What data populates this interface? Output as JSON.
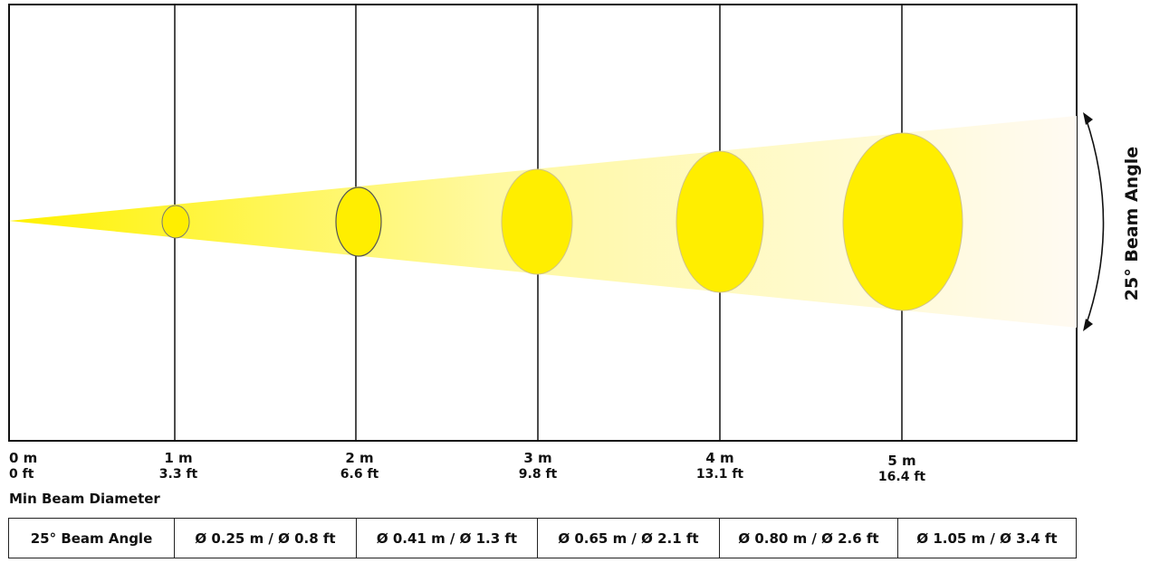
{
  "beam_angle_label": "25° Beam Angle",
  "min_beam_title": "Min Beam Diameter",
  "distances": [
    {
      "m": "0 m",
      "ft": "0 ft"
    },
    {
      "m": "1 m",
      "ft": "3.3 ft"
    },
    {
      "m": "2 m",
      "ft": "6.6 ft"
    },
    {
      "m": "3 m",
      "ft": "9.8 ft"
    },
    {
      "m": "4 m",
      "ft": "13.1 ft"
    },
    {
      "m": "5 m",
      "ft": "16.4 ft"
    }
  ],
  "table": {
    "header": "25° Beam Angle",
    "cells": [
      "Ø 0.25 m / Ø 0.8 ft",
      "Ø 0.41 m / Ø 1.3 ft",
      "Ø 0.65 m / Ø 2.1 ft",
      "Ø 0.80 m / Ø 2.6 ft",
      "Ø 1.05 m / Ø 3.4 ft"
    ]
  },
  "colors": {
    "beam": "#fff200",
    "beam_fade": "#fdf3d8",
    "line": "#111111"
  }
}
